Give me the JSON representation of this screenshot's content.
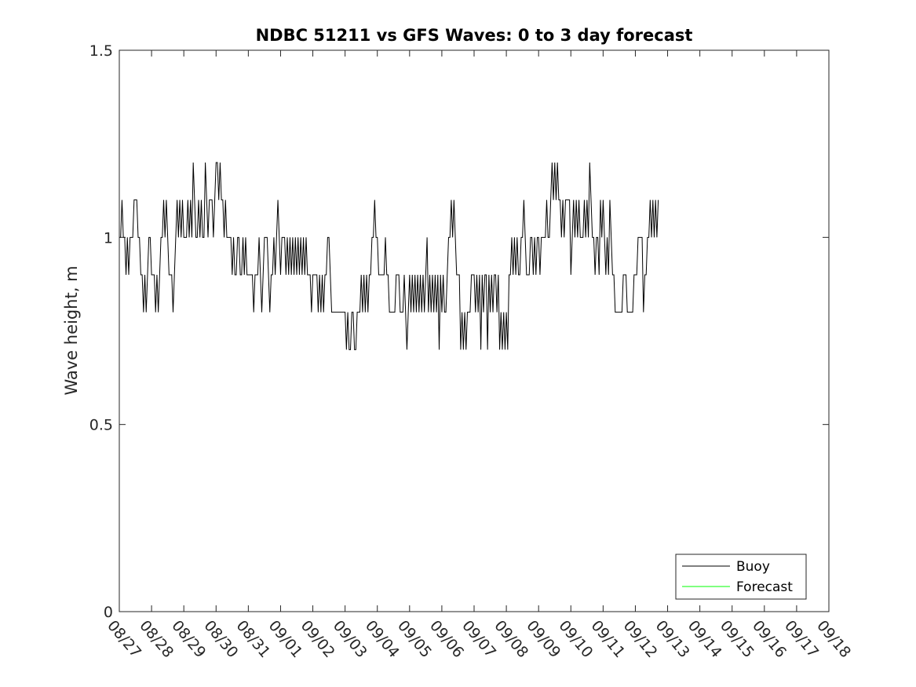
{
  "chart_data": {
    "type": "line",
    "title": "NDBC 51211 vs GFS Waves: 0 to 3 day forecast",
    "xlabel": "",
    "ylabel": "Wave height, m",
    "xlim": [
      0,
      22
    ],
    "ylim": [
      0,
      1.5
    ],
    "grid": false,
    "x_tick_labels": [
      "08/27",
      "08/28",
      "08/29",
      "08/30",
      "08/31",
      "09/01",
      "09/02",
      "09/03",
      "09/04",
      "09/05",
      "09/06",
      "09/07",
      "09/08",
      "09/09",
      "09/10",
      "09/11",
      "09/12",
      "09/13",
      "09/14",
      "09/15",
      "09/16",
      "09/17",
      "09/18"
    ],
    "y_ticks": [
      0,
      0.5,
      1,
      1.5
    ],
    "y_tick_labels": [
      "0",
      "0.5",
      "1",
      "1.5"
    ],
    "legend_position": "bottom-right",
    "x_units": "days since 08/27",
    "series": [
      {
        "name": "Buoy",
        "color": "#000000",
        "x_start": 0.0,
        "x_step": 0.04167,
        "values": [
          1.0,
          1.0,
          1.1,
          1.0,
          1.0,
          0.9,
          1.0,
          0.9,
          1.0,
          1.0,
          1.0,
          1.1,
          1.1,
          1.1,
          1.0,
          1.0,
          0.9,
          0.9,
          0.8,
          0.9,
          0.8,
          0.9,
          1.0,
          1.0,
          0.9,
          0.9,
          0.9,
          0.8,
          0.9,
          0.8,
          0.9,
          1.0,
          1.0,
          1.1,
          1.0,
          1.1,
          1.0,
          0.9,
          0.9,
          0.9,
          0.8,
          0.9,
          1.0,
          1.1,
          1.0,
          1.1,
          1.0,
          1.1,
          1.0,
          1.0,
          1.0,
          1.1,
          1.0,
          1.1,
          1.0,
          1.2,
          1.1,
          1.0,
          1.0,
          1.1,
          1.0,
          1.1,
          1.0,
          1.0,
          1.2,
          1.1,
          1.0,
          1.1,
          1.1,
          1.1,
          1.0,
          1.1,
          1.2,
          1.2,
          1.1,
          1.2,
          1.1,
          1.1,
          1.0,
          1.1,
          1.0,
          1.0,
          1.0,
          1.0,
          0.9,
          1.0,
          0.9,
          0.9,
          1.0,
          1.0,
          0.9,
          0.9,
          1.0,
          0.9,
          1.0,
          0.9,
          0.9,
          0.9,
          0.9,
          0.9,
          0.8,
          0.9,
          0.9,
          0.9,
          1.0,
          0.9,
          0.8,
          0.9,
          1.0,
          1.0,
          1.0,
          0.9,
          0.8,
          0.9,
          0.9,
          1.0,
          0.9,
          1.0,
          1.1,
          1.0,
          0.9,
          1.0,
          1.0,
          1.0,
          0.9,
          1.0,
          0.9,
          1.0,
          0.9,
          1.0,
          0.9,
          1.0,
          0.9,
          1.0,
          0.9,
          1.0,
          0.9,
          1.0,
          0.9,
          1.0,
          0.9,
          0.9,
          0.9,
          0.8,
          0.9,
          0.9,
          0.9,
          0.9,
          0.8,
          0.9,
          0.8,
          0.9,
          0.8,
          0.9,
          0.9,
          1.0,
          1.0,
          0.9,
          0.8,
          0.8,
          0.8,
          0.8,
          0.8,
          0.8,
          0.8,
          0.8,
          0.8,
          0.8,
          0.8,
          0.7,
          0.8,
          0.7,
          0.7,
          0.8,
          0.8,
          0.7,
          0.7,
          0.8,
          0.8,
          0.8,
          0.9,
          0.8,
          0.9,
          0.8,
          0.9,
          0.8,
          0.9,
          0.9,
          1.0,
          1.0,
          1.1,
          1.0,
          1.0,
          0.9,
          0.9,
          0.9,
          0.9,
          0.9,
          1.0,
          0.9,
          0.9,
          0.8,
          0.8,
          0.8,
          0.8,
          0.8,
          0.9,
          0.9,
          0.9,
          0.8,
          0.8,
          0.8,
          0.9,
          0.8,
          0.7,
          0.8,
          0.9,
          0.8,
          0.9,
          0.8,
          0.9,
          0.8,
          0.9,
          0.8,
          0.9,
          0.8,
          0.9,
          0.8,
          0.9,
          1.0,
          0.8,
          0.9,
          0.8,
          0.9,
          0.8,
          0.9,
          0.8,
          0.9,
          0.7,
          0.9,
          0.8,
          0.9,
          0.8,
          0.8,
          0.9,
          1.0,
          1.0,
          1.1,
          1.0,
          1.1,
          1.0,
          0.9,
          0.9,
          0.9,
          0.7,
          0.8,
          0.7,
          0.8,
          0.7,
          0.8,
          0.8,
          0.8,
          0.9,
          0.9,
          0.9,
          0.8,
          0.9,
          0.8,
          0.9,
          0.7,
          0.9,
          0.8,
          0.9,
          0.9,
          0.7,
          0.9,
          0.8,
          0.9,
          0.8,
          0.9,
          0.9,
          0.8,
          0.9,
          0.7,
          0.8,
          0.7,
          0.8,
          0.7,
          0.8,
          0.7,
          0.9,
          0.9,
          1.0,
          0.9,
          1.0,
          0.9,
          1.0,
          0.9,
          0.9,
          1.0,
          1.0,
          1.1,
          1.0,
          0.9,
          0.9,
          0.9,
          1.0,
          1.0,
          0.9,
          1.0,
          0.9,
          1.0,
          1.0,
          0.9,
          1.0,
          1.0,
          1.0,
          1.0,
          1.1,
          1.0,
          1.0,
          1.1,
          1.2,
          1.1,
          1.2,
          1.1,
          1.2,
          1.1,
          1.1,
          1.0,
          1.1,
          1.0,
          1.1,
          1.1,
          1.1,
          1.1,
          0.9,
          1.0,
          1.1,
          1.0,
          1.1,
          1.0,
          1.1,
          1.0,
          1.0,
          1.0,
          1.1,
          1.0,
          1.1,
          1.0,
          1.2,
          1.1,
          1.0,
          1.0,
          0.9,
          1.0,
          1.0,
          0.9,
          1.1,
          1.0,
          1.1,
          1.0,
          0.9,
          1.0,
          0.9,
          1.1,
          1.0,
          0.9,
          0.9,
          0.8,
          0.8,
          0.8,
          0.8,
          0.8,
          0.8,
          0.9,
          0.9,
          0.9,
          0.8,
          0.8,
          0.8,
          0.8,
          0.8,
          0.9,
          0.9,
          0.9,
          1.0,
          1.0,
          1.0,
          1.0,
          0.8,
          0.9,
          0.9,
          1.0,
          1.0,
          1.1,
          1.0,
          1.1,
          1.0,
          1.1,
          1.0,
          1.1
        ]
      },
      {
        "name": "Forecast",
        "color": "#00ff00",
        "values": []
      }
    ]
  }
}
